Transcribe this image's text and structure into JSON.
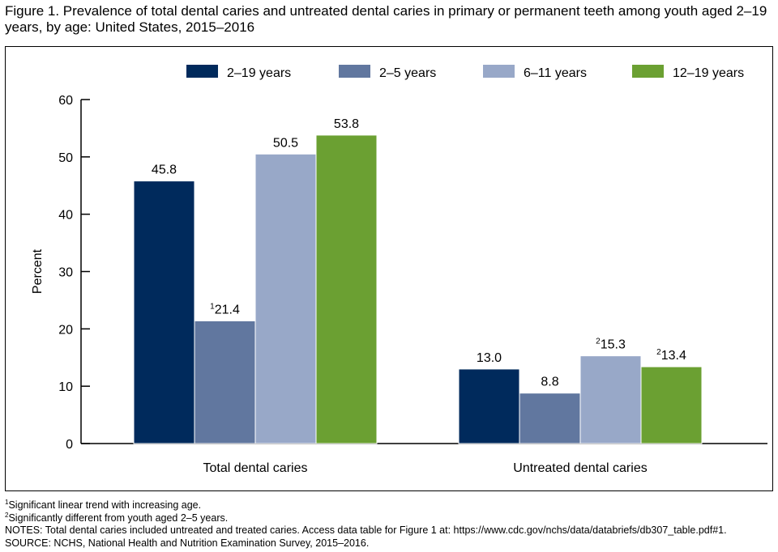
{
  "figure": {
    "title": "Figure 1. Prevalence of total dental caries and untreated dental caries in primary or permanent teeth among youth aged 2–19 years, by age: United States, 2015–2016"
  },
  "footnotes": [
    {
      "marker": "1",
      "text": "Significant linear trend with increasing age."
    },
    {
      "marker": "2",
      "text": "Significantly different from youth aged 2–5 years."
    },
    {
      "marker": "",
      "text": "NOTES: Total dental caries included untreated and treated caries. Access data table for Figure 1 at: https://www.cdc.gov/nchs/data/databriefs/db307_table.pdf#1."
    },
    {
      "marker": "",
      "text": "SOURCE: NCHS, National Health and Nutrition Examination Survey, 2015–2016."
    }
  ],
  "chart_data": {
    "type": "bar",
    "title": "",
    "xlabel": "",
    "ylabel": "Percent",
    "ylim": [
      0,
      60
    ],
    "yticks": [
      0,
      10,
      20,
      30,
      40,
      50,
      60
    ],
    "grid": false,
    "legend_position": "top",
    "categories": [
      "Total dental caries",
      "Untreated dental caries"
    ],
    "series": [
      {
        "name": "2–19 years",
        "color": "#002a5c",
        "values": [
          45.8,
          13.0
        ],
        "labels": [
          "45.8",
          "13.0"
        ],
        "markers": [
          "",
          ""
        ]
      },
      {
        "name": "2–5 years",
        "color": "#61779f",
        "values": [
          21.4,
          8.8
        ],
        "labels": [
          "21.4",
          "8.8"
        ],
        "markers": [
          "1",
          ""
        ]
      },
      {
        "name": "6–11 years",
        "color": "#98a8c8",
        "values": [
          50.5,
          15.3
        ],
        "labels": [
          "50.5",
          "15.3"
        ],
        "markers": [
          "",
          "2"
        ]
      },
      {
        "name": "12–19 years",
        "color": "#6ba032",
        "values": [
          53.8,
          13.4
        ],
        "labels": [
          "53.8",
          "13.4"
        ],
        "markers": [
          "",
          "2"
        ]
      }
    ]
  }
}
